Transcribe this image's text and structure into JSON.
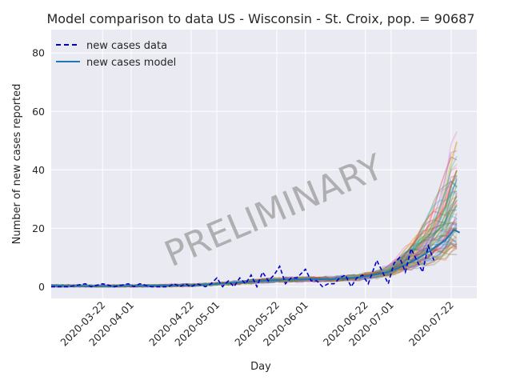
{
  "chart_data": {
    "type": "line",
    "title": "Model comparison to data US - Wisconsin - St. Croix, pop. = 90687",
    "xlabel": "Day",
    "ylabel": "Number of new cases reported",
    "watermark": "PRELIMINARY",
    "x_range": [
      "2020-03-04",
      "2020-07-31"
    ],
    "ylim": [
      -4,
      88
    ],
    "yticks": [
      0,
      20,
      40,
      60,
      80
    ],
    "xticks": [
      "2020-03-22",
      "2020-04-01",
      "2020-04-22",
      "2020-05-01",
      "2020-05-22",
      "2020-06-01",
      "2020-06-22",
      "2020-07-01",
      "2020-07-22"
    ],
    "grid": true,
    "legend": {
      "placement": "top-left",
      "entries": [
        "new cases data",
        "new cases model"
      ]
    },
    "colors": {
      "background": "#eaeaf2",
      "data": "#0000cc",
      "model": "#1f77b4",
      "ensemble": [
        "#1f77b4",
        "#ff7f0e",
        "#2ca02c",
        "#d62728",
        "#9467bd",
        "#8c564b",
        "#e377c2",
        "#7f7f7f",
        "#bcbd22",
        "#17becf"
      ]
    },
    "series": [
      {
        "name": "new cases data",
        "style": "dashed",
        "points": [
          [
            "2020-03-04",
            0
          ],
          [
            "2020-03-10",
            0
          ],
          [
            "2020-03-16",
            1
          ],
          [
            "2020-03-18",
            0
          ],
          [
            "2020-03-22",
            1
          ],
          [
            "2020-03-26",
            0
          ],
          [
            "2020-03-31",
            1
          ],
          [
            "2020-04-02",
            0
          ],
          [
            "2020-04-04",
            1
          ],
          [
            "2020-04-08",
            0
          ],
          [
            "2020-04-14",
            0
          ],
          [
            "2020-04-16",
            1
          ],
          [
            "2020-04-18",
            0
          ],
          [
            "2020-04-20",
            1
          ],
          [
            "2020-04-22",
            0
          ],
          [
            "2020-04-24",
            1
          ],
          [
            "2020-04-27",
            0
          ],
          [
            "2020-04-29",
            1
          ],
          [
            "2020-05-01",
            3
          ],
          [
            "2020-05-03",
            0
          ],
          [
            "2020-05-05",
            2
          ],
          [
            "2020-05-07",
            0
          ],
          [
            "2020-05-09",
            3
          ],
          [
            "2020-05-11",
            1
          ],
          [
            "2020-05-13",
            4
          ],
          [
            "2020-05-15",
            0
          ],
          [
            "2020-05-17",
            5
          ],
          [
            "2020-05-19",
            2
          ],
          [
            "2020-05-21",
            4
          ],
          [
            "2020-05-23",
            7
          ],
          [
            "2020-05-25",
            1
          ],
          [
            "2020-05-27",
            3
          ],
          [
            "2020-05-29",
            3
          ],
          [
            "2020-06-01",
            6
          ],
          [
            "2020-06-03",
            2
          ],
          [
            "2020-06-05",
            2
          ],
          [
            "2020-06-07",
            0
          ],
          [
            "2020-06-09",
            1
          ],
          [
            "2020-06-11",
            1
          ],
          [
            "2020-06-13",
            3
          ],
          [
            "2020-06-15",
            4
          ],
          [
            "2020-06-17",
            0
          ],
          [
            "2020-06-19",
            3
          ],
          [
            "2020-06-21",
            4
          ],
          [
            "2020-06-23",
            1
          ],
          [
            "2020-06-26",
            9
          ],
          [
            "2020-06-28",
            5
          ],
          [
            "2020-06-30",
            1
          ],
          [
            "2020-07-02",
            8
          ],
          [
            "2020-07-04",
            10
          ],
          [
            "2020-07-06",
            5
          ],
          [
            "2020-07-08",
            13
          ],
          [
            "2020-07-10",
            9
          ],
          [
            "2020-07-12",
            5
          ],
          [
            "2020-07-14",
            14
          ],
          [
            "2020-07-16",
            9
          ]
        ]
      },
      {
        "name": "new cases model",
        "style": "solid",
        "points": [
          [
            "2020-03-04",
            0.3
          ],
          [
            "2020-03-20",
            0.2
          ],
          [
            "2020-04-10",
            0.3
          ],
          [
            "2020-04-25",
            0.6
          ],
          [
            "2020-05-10",
            1.5
          ],
          [
            "2020-05-25",
            2.5
          ],
          [
            "2020-06-10",
            2.6
          ],
          [
            "2020-06-20",
            3.2
          ],
          [
            "2020-06-30",
            5.0
          ],
          [
            "2020-07-05",
            7.0
          ],
          [
            "2020-07-10",
            9.5
          ],
          [
            "2020-07-15",
            12.5
          ],
          [
            "2020-07-20",
            16.0
          ],
          [
            "2020-07-23",
            19.5
          ],
          [
            "2020-07-25",
            18.5
          ]
        ]
      }
    ]
  }
}
